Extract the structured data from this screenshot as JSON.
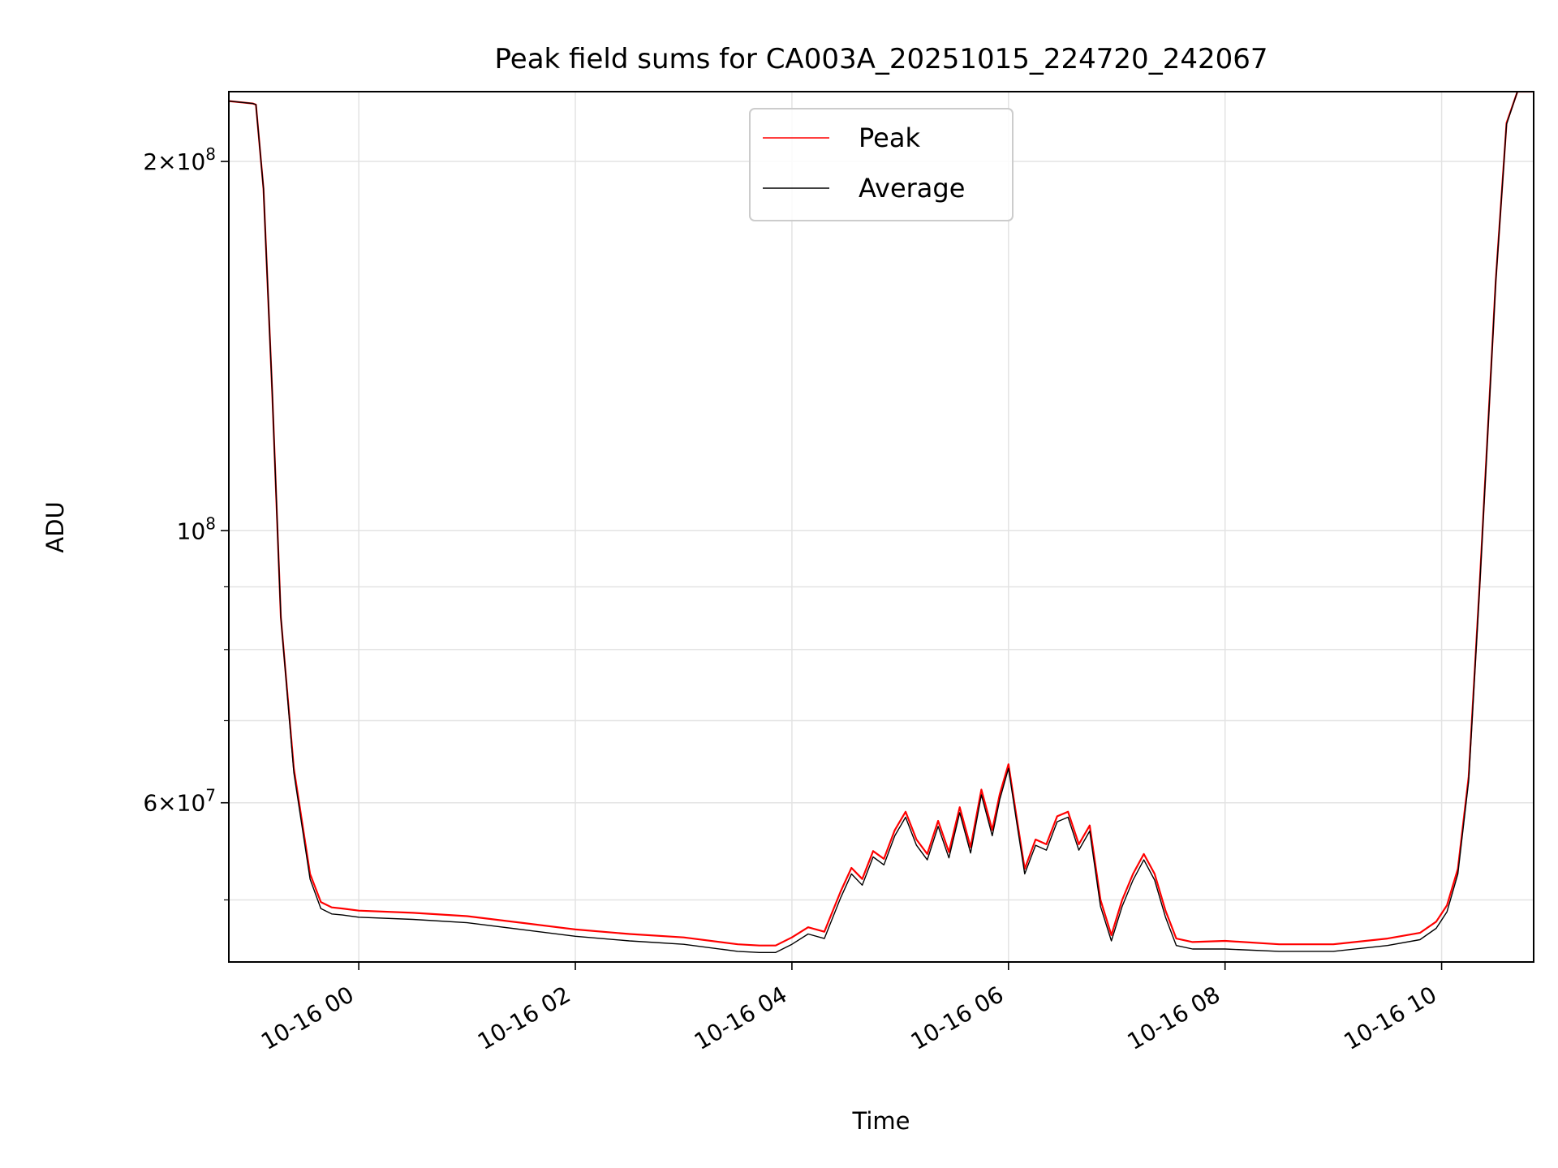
{
  "chart_data": {
    "type": "line",
    "title": "Peak field sums for CA003A_20251015_224720_242067",
    "xlabel": "Time",
    "ylabel": "ADU",
    "yscale": "log",
    "ylim": [
      44500000,
      228000000
    ],
    "xlim": [
      -1.2,
      10.85
    ],
    "x_unit": "hours after 2025-10-16 00:00",
    "x_ticks": [
      {
        "value": 0,
        "label": "10-16 00"
      },
      {
        "value": 2,
        "label": "10-16 02"
      },
      {
        "value": 4,
        "label": "10-16 04"
      },
      {
        "value": 6,
        "label": "10-16 06"
      },
      {
        "value": 8,
        "label": "10-16 08"
      },
      {
        "value": 10,
        "label": "10-16 10"
      }
    ],
    "y_major_ticks": [
      {
        "value": 60000000,
        "mant": "6",
        "exp": "7"
      },
      {
        "value": 100000000,
        "mant": "",
        "exp": "8"
      },
      {
        "value": 200000000,
        "mant": "2",
        "exp": "8"
      }
    ],
    "y_minor_ticks": [
      50000000,
      70000000,
      80000000,
      90000000
    ],
    "grid": true,
    "legend_position": "upper-center",
    "series": [
      {
        "name": "Peak",
        "color": "#ff0000",
        "x": [
          -1.2,
          -0.98,
          -0.95,
          -0.88,
          -0.8,
          -0.72,
          -0.6,
          -0.45,
          -0.35,
          -0.25,
          -0.15,
          0,
          0.5,
          1,
          1.5,
          2,
          2.5,
          3,
          3.5,
          3.7,
          3.85,
          4.0,
          4.15,
          4.3,
          4.45,
          4.55,
          4.65,
          4.75,
          4.85,
          4.95,
          5.05,
          5.15,
          5.25,
          5.35,
          5.45,
          5.55,
          5.65,
          5.75,
          5.85,
          5.92,
          6.0,
          6.08,
          6.15,
          6.25,
          6.35,
          6.45,
          6.55,
          6.65,
          6.75,
          6.85,
          6.95,
          7.05,
          7.15,
          7.25,
          7.35,
          7.45,
          7.55,
          7.7,
          8.0,
          8.5,
          9.0,
          9.5,
          9.8,
          9.95,
          10.05,
          10.15,
          10.25,
          10.35,
          10.5,
          10.6,
          10.7,
          10.85
        ],
        "y": [
          224000000,
          223000000,
          222500000,
          190000000,
          130000000,
          85000000,
          64000000,
          52500000,
          49800000,
          49300000,
          49200000,
          49000000,
          48800000,
          48500000,
          47900000,
          47300000,
          46900000,
          46600000,
          46000000,
          45900000,
          45900000,
          46600000,
          47500000,
          47100000,
          50800000,
          53100000,
          52000000,
          54800000,
          54000000,
          57000000,
          59000000,
          56000000,
          54500000,
          58000000,
          54700000,
          59500000,
          55200000,
          61500000,
          57000000,
          61000000,
          64500000,
          58000000,
          53000000,
          56000000,
          55500000,
          58500000,
          59000000,
          55500000,
          57500000,
          50000000,
          46800000,
          50000000,
          52500000,
          54500000,
          52500000,
          49000000,
          46500000,
          46200000,
          46300000,
          46000000,
          46000000,
          46500000,
          47000000,
          48000000,
          49500000,
          53000000,
          63000000,
          90000000,
          160000000,
          215000000,
          228000000,
          228000000
        ]
      },
      {
        "name": "Average",
        "color": "#000000",
        "x": [
          -1.2,
          -0.98,
          -0.95,
          -0.88,
          -0.8,
          -0.72,
          -0.6,
          -0.45,
          -0.35,
          -0.25,
          -0.15,
          0,
          0.5,
          1,
          1.5,
          2,
          2.5,
          3,
          3.5,
          3.7,
          3.85,
          4.0,
          4.15,
          4.3,
          4.45,
          4.55,
          4.65,
          4.75,
          4.85,
          4.95,
          5.05,
          5.15,
          5.25,
          5.35,
          5.45,
          5.55,
          5.65,
          5.75,
          5.85,
          5.92,
          6.0,
          6.08,
          6.15,
          6.25,
          6.35,
          6.45,
          6.55,
          6.65,
          6.75,
          6.85,
          6.95,
          7.05,
          7.15,
          7.25,
          7.35,
          7.45,
          7.55,
          7.7,
          8.0,
          8.5,
          9.0,
          9.5,
          9.8,
          9.95,
          10.05,
          10.15,
          10.25,
          10.35,
          10.5,
          10.6,
          10.7,
          10.85
        ],
        "y": [
          224000000,
          223000000,
          222500000,
          190000000,
          130000000,
          85000000,
          63500000,
          52000000,
          49200000,
          48700000,
          48600000,
          48400000,
          48200000,
          47900000,
          47300000,
          46700000,
          46300000,
          46000000,
          45400000,
          45300000,
          45300000,
          46000000,
          46900000,
          46500000,
          50200000,
          52500000,
          51400000,
          54200000,
          53400000,
          56400000,
          58400000,
          55400000,
          53900000,
          57400000,
          54100000,
          58900000,
          54600000,
          60900000,
          56400000,
          60400000,
          64000000,
          57500000,
          52500000,
          55400000,
          54900000,
          57900000,
          58400000,
          54900000,
          56900000,
          49400000,
          46300000,
          49400000,
          51900000,
          53900000,
          51900000,
          48400000,
          45900000,
          45600000,
          45600000,
          45400000,
          45400000,
          45900000,
          46400000,
          47400000,
          48900000,
          52500000,
          62500000,
          89500000,
          159500000,
          214500000,
          228000000,
          228000000
        ]
      }
    ]
  }
}
